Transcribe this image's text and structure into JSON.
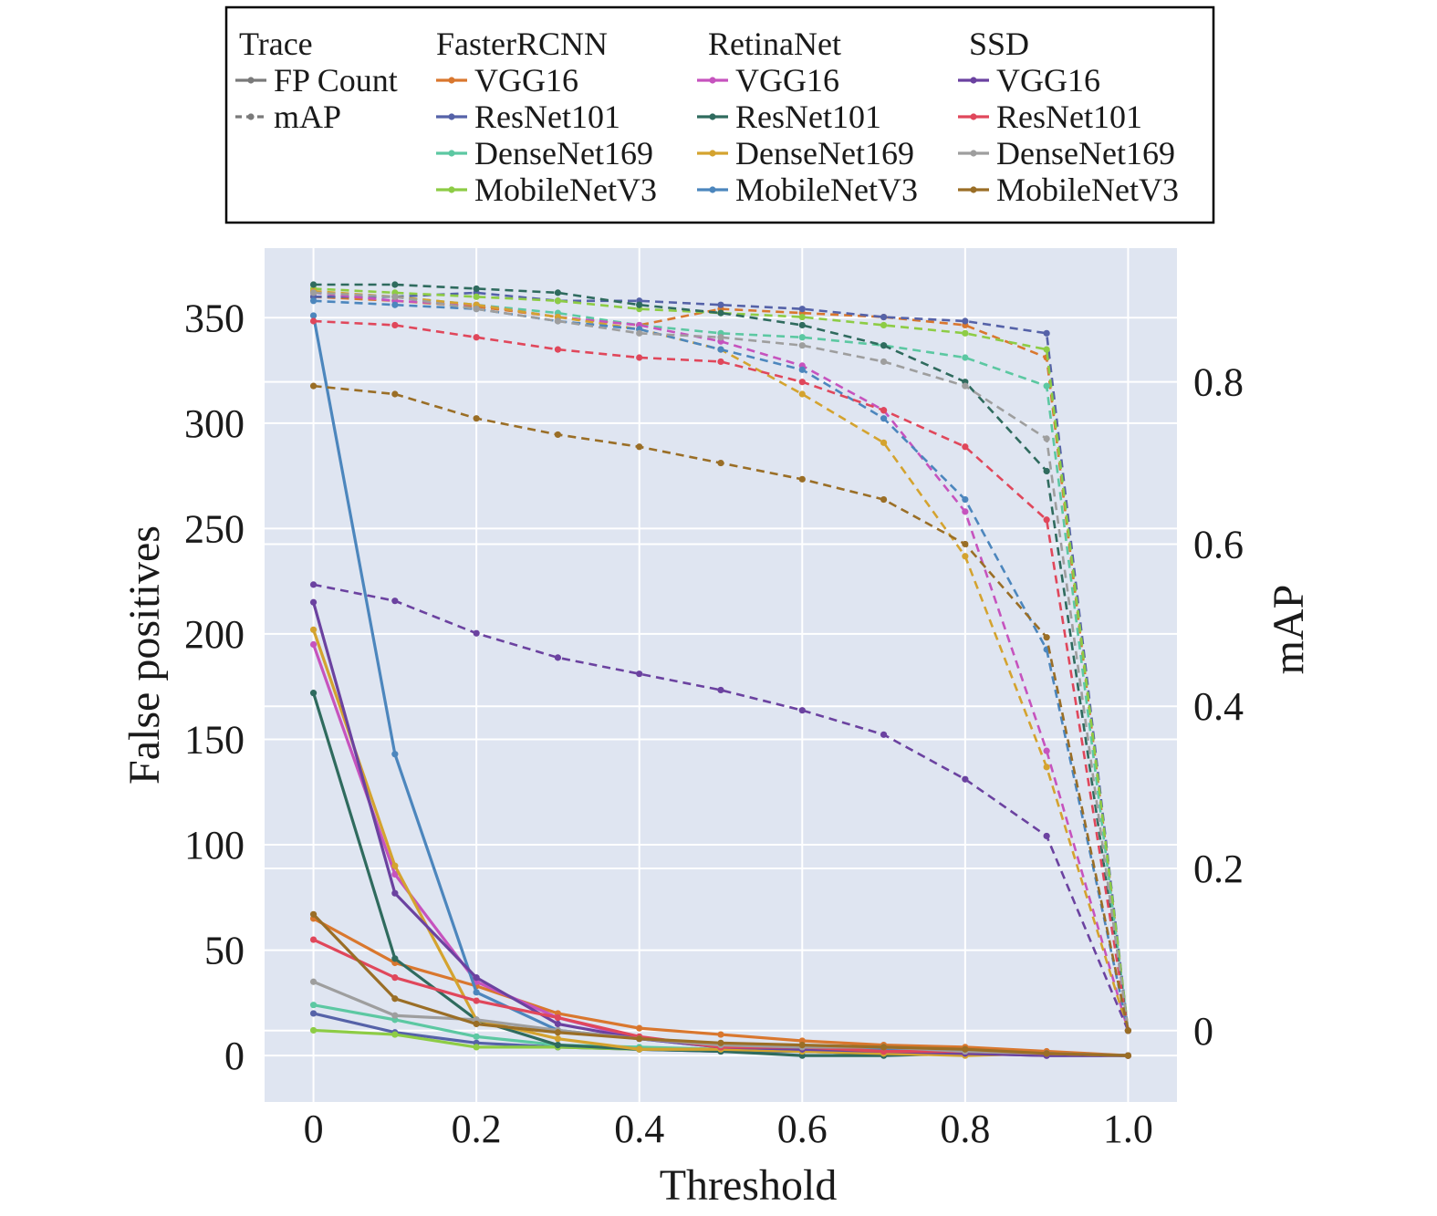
{
  "chart_data": {
    "type": "line",
    "x": [
      0,
      0.1,
      0.2,
      0.3,
      0.4,
      0.5,
      0.6,
      0.7,
      0.8,
      0.9,
      1.0
    ],
    "xlabel": "Threshold",
    "ylabel": "False positives",
    "y2label": "mAP",
    "xlim": [
      -0.06,
      1.06
    ],
    "ylim": [
      -22,
      383
    ],
    "y2lim": [
      -0.088,
      0.965
    ],
    "xticks": [
      0,
      0.2,
      0.4,
      0.6,
      0.8,
      1.0
    ],
    "xtick_labels": [
      "0",
      "0.2",
      "0.4",
      "0.6",
      "0.8",
      "1.0"
    ],
    "yticks": [
      0,
      50,
      100,
      150,
      200,
      250,
      300,
      350
    ],
    "y2ticks": [
      0,
      0.2,
      0.4,
      0.6,
      0.8
    ],
    "y2tick_labels": [
      "0",
      "0.2",
      "0.4",
      "0.6",
      "0.8"
    ],
    "grid": true,
    "background": "#dfe5f1",
    "legend": {
      "placement": "top",
      "columns": [
        {
          "header": "Trace",
          "entries": [
            {
              "label": "FP Count",
              "color": "#7a7a7a",
              "style": "solid"
            },
            {
              "label": "mAP",
              "color": "#7a7a7a",
              "style": "dashed"
            }
          ]
        },
        {
          "header": "FasterRCNN",
          "entries": [
            {
              "label": "VGG16",
              "color": "#d9772e",
              "style": "solid"
            },
            {
              "label": "ResNet101",
              "color": "#5562a8",
              "style": "solid"
            },
            {
              "label": "DenseNet169",
              "color": "#5cc8a2",
              "style": "solid"
            },
            {
              "label": "MobileNetV3",
              "color": "#8dcc45",
              "style": "solid"
            }
          ]
        },
        {
          "header": "RetinaNet",
          "entries": [
            {
              "label": "VGG16",
              "color": "#c653be",
              "style": "solid"
            },
            {
              "label": "ResNet101",
              "color": "#2f6b5e",
              "style": "solid"
            },
            {
              "label": "DenseNet169",
              "color": "#d4a32f",
              "style": "solid"
            },
            {
              "label": "MobileNetV3",
              "color": "#4c86bd",
              "style": "solid"
            }
          ]
        },
        {
          "header": "SSD",
          "entries": [
            {
              "label": "VGG16",
              "color": "#6b42a0",
              "style": "solid"
            },
            {
              "label": "ResNet101",
              "color": "#e0475b",
              "style": "solid"
            },
            {
              "label": "DenseNet169",
              "color": "#9e9e9e",
              "style": "solid"
            },
            {
              "label": "MobileNetV3",
              "color": "#9a6e26",
              "style": "solid"
            }
          ]
        }
      ]
    },
    "series": [
      {
        "model": "FasterRCNN",
        "backbone": "VGG16",
        "color": "#d9772e",
        "fp": [
          65,
          44,
          33,
          20,
          13,
          10,
          7,
          5,
          4,
          2,
          0
        ],
        "map": [
          0.905,
          0.9,
          0.893,
          0.88,
          0.87,
          0.89,
          0.885,
          0.88,
          0.87,
          0.83,
          0
        ]
      },
      {
        "model": "FasterRCNN",
        "backbone": "ResNet101",
        "color": "#5562a8",
        "fp": [
          20,
          11,
          6,
          4,
          3,
          2,
          2,
          1,
          1,
          0,
          0
        ],
        "map": [
          0.905,
          0.905,
          0.91,
          0.9,
          0.9,
          0.895,
          0.89,
          0.88,
          0.875,
          0.86,
          0
        ]
      },
      {
        "model": "FasterRCNN",
        "backbone": "DenseNet169",
        "color": "#5cc8a2",
        "fp": [
          24,
          17,
          9,
          5,
          4,
          3,
          3,
          2,
          1,
          1,
          0
        ],
        "map": [
          0.91,
          0.905,
          0.895,
          0.885,
          0.87,
          0.86,
          0.855,
          0.845,
          0.83,
          0.795,
          0
        ]
      },
      {
        "model": "FasterRCNN",
        "backbone": "MobileNetV3",
        "color": "#8dcc45",
        "fp": [
          12,
          10,
          4,
          4,
          3,
          3,
          2,
          1,
          1,
          1,
          0
        ],
        "map": [
          0.915,
          0.91,
          0.905,
          0.9,
          0.89,
          0.885,
          0.88,
          0.87,
          0.86,
          0.84,
          0
        ]
      },
      {
        "model": "RetinaNet",
        "backbone": "VGG16",
        "color": "#c653be",
        "fp": [
          195,
          86,
          35,
          18,
          8,
          5,
          4,
          3,
          2,
          1,
          0
        ],
        "map": [
          0.91,
          0.9,
          0.895,
          0.88,
          0.87,
          0.85,
          0.82,
          0.765,
          0.64,
          0.345,
          0
        ]
      },
      {
        "model": "RetinaNet",
        "backbone": "ResNet101",
        "color": "#2f6b5e",
        "fp": [
          172,
          46,
          17,
          5,
          3,
          2,
          0,
          0,
          1,
          1,
          0
        ],
        "map": [
          0.92,
          0.92,
          0.915,
          0.91,
          0.895,
          0.885,
          0.87,
          0.845,
          0.8,
          0.69,
          0
        ]
      },
      {
        "model": "RetinaNet",
        "backbone": "DenseNet169",
        "color": "#d4a32f",
        "fp": [
          202,
          90,
          17,
          8,
          3,
          3,
          2,
          1,
          0,
          1,
          0
        ],
        "map": [
          0.912,
          0.905,
          0.895,
          0.88,
          0.865,
          0.84,
          0.785,
          0.725,
          0.585,
          0.325,
          0
        ]
      },
      {
        "model": "RetinaNet",
        "backbone": "MobileNetV3",
        "color": "#4c86bd",
        "fp": [
          351,
          143,
          30,
          12,
          8,
          4,
          3,
          3,
          2,
          1,
          0
        ],
        "map": [
          0.9,
          0.895,
          0.89,
          0.875,
          0.865,
          0.84,
          0.815,
          0.755,
          0.655,
          0.47,
          0
        ]
      },
      {
        "model": "SSD",
        "backbone": "VGG16",
        "color": "#6b42a0",
        "fp": [
          215,
          77,
          37,
          15,
          8,
          4,
          3,
          2,
          1,
          0,
          0
        ],
        "map": [
          0.55,
          0.53,
          0.49,
          0.46,
          0.44,
          0.42,
          0.395,
          0.365,
          0.31,
          0.24,
          0
        ]
      },
      {
        "model": "SSD",
        "backbone": "ResNet101",
        "color": "#e0475b",
        "fp": [
          55,
          37,
          26,
          18,
          9,
          4,
          4,
          2,
          2,
          1,
          0
        ],
        "map": [
          0.875,
          0.87,
          0.855,
          0.84,
          0.83,
          0.825,
          0.8,
          0.765,
          0.72,
          0.63,
          0
        ]
      },
      {
        "model": "SSD",
        "backbone": "DenseNet169",
        "color": "#9e9e9e",
        "fp": [
          35,
          19,
          17,
          12,
          8,
          5,
          4,
          4,
          2,
          1,
          0
        ],
        "map": [
          0.91,
          0.905,
          0.89,
          0.875,
          0.86,
          0.855,
          0.845,
          0.825,
          0.795,
          0.73,
          0
        ]
      },
      {
        "model": "SSD",
        "backbone": "MobileNetV3",
        "color": "#9a6e26",
        "fp": [
          67,
          27,
          15,
          11,
          8,
          6,
          5,
          4,
          3,
          1,
          0
        ],
        "map": [
          0.795,
          0.785,
          0.755,
          0.735,
          0.72,
          0.7,
          0.68,
          0.655,
          0.6,
          0.485,
          0
        ]
      }
    ]
  }
}
